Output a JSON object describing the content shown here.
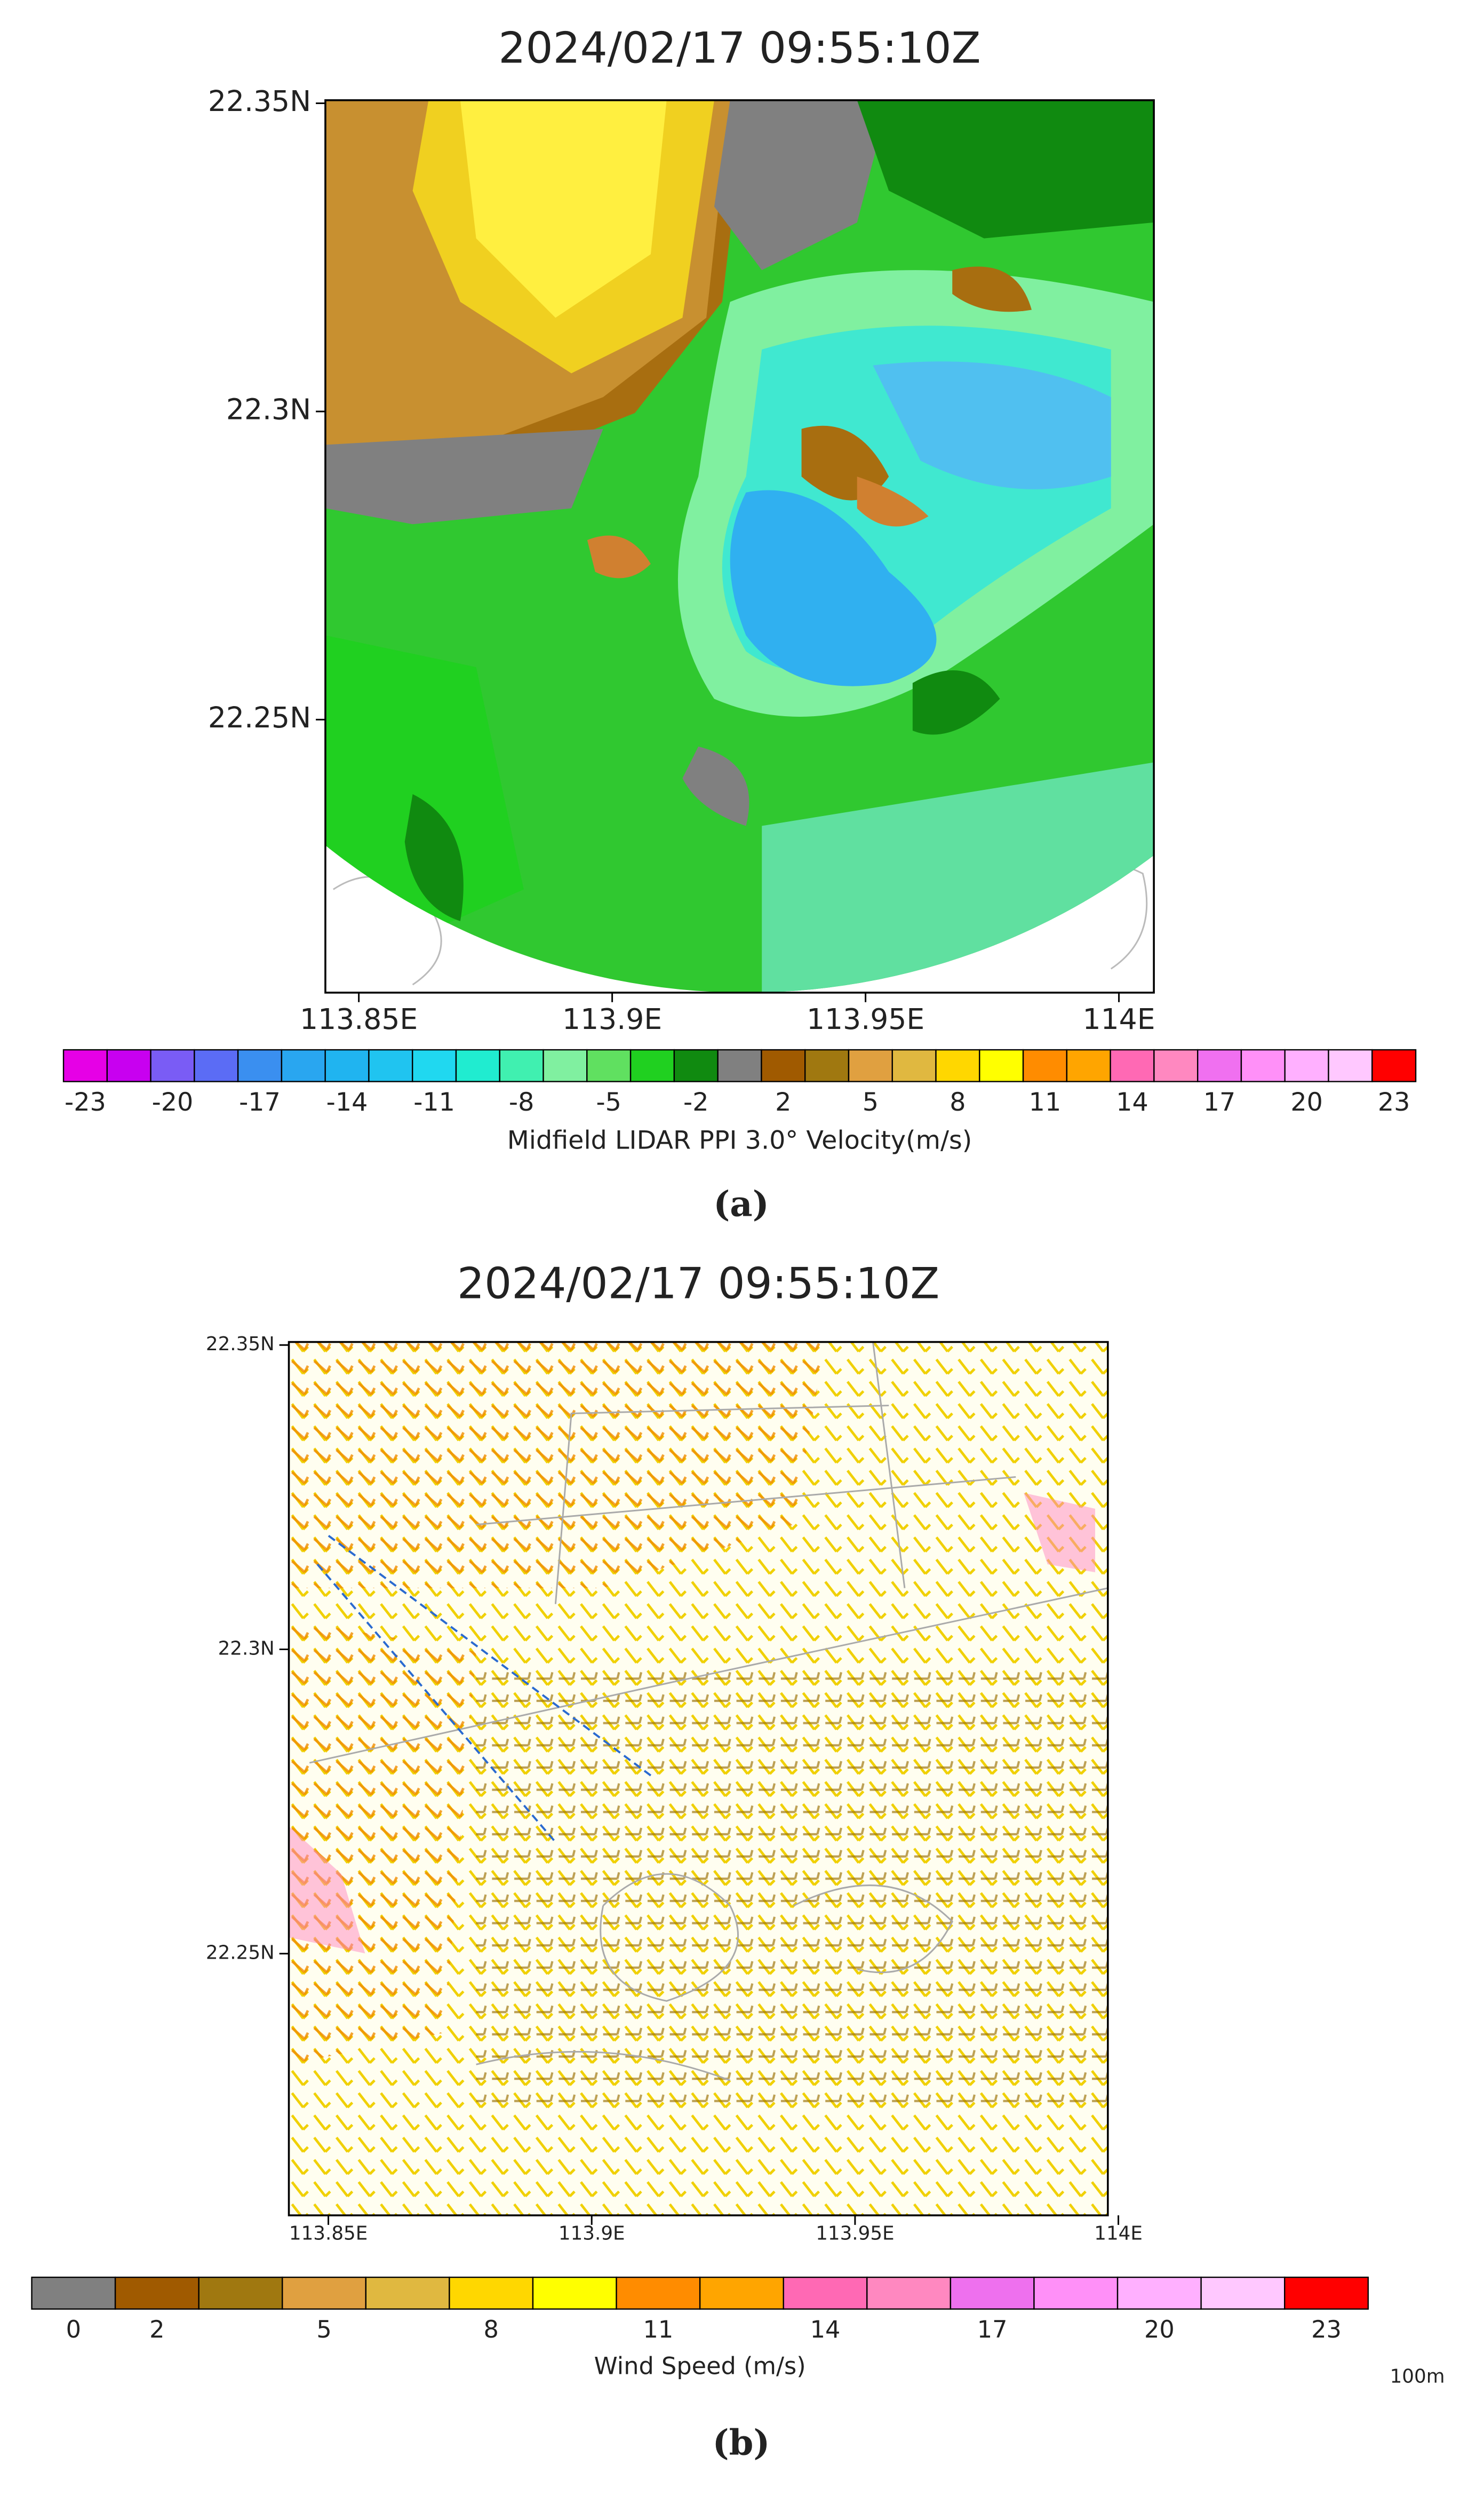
{
  "chart_data": [
    {
      "type": "heatmap",
      "title": "2024/02/17 09:55:10Z",
      "xlim": [
        113.8434,
        114.0069
      ],
      "ylim": [
        22.2057,
        22.3505
      ],
      "xticks": [
        {
          "value": 113.85,
          "label": "113.85E"
        },
        {
          "value": 113.9,
          "label": "113.9E"
        },
        {
          "value": 113.95,
          "label": "113.95E"
        },
        {
          "value": 114,
          "label": "114E"
        }
      ],
      "yticks": [
        {
          "value": 22.35,
          "label": "22.35N"
        },
        {
          "value": 22.3,
          "label": "22.3N"
        },
        {
          "value": 22.25,
          "label": "22.25N"
        }
      ],
      "colorbar": {
        "title": "Midfield LIDAR PPI 3.0° Velocity(m/s)",
        "colors": [
          "#e600e6",
          "#c800f0",
          "#7a5cf5",
          "#5b6cf5",
          "#3a8ff0",
          "#29a6f0",
          "#20b4f0",
          "#20c4f0",
          "#20d8f0",
          "#20ecd0",
          "#40f0b0",
          "#80f0a0",
          "#60e060",
          "#20d020",
          "#108a10",
          "#808080",
          "#a05a00",
          "#a07810",
          "#e0a040",
          "#e0b840",
          "#ffd700",
          "#ffff00",
          "#ff8c00",
          "#ffa500",
          "#ff69b4",
          "#ff88c0",
          "#f070f0",
          "#ff90f8",
          "#ffb0ff",
          "#ffc8ff",
          "#ff0000"
        ],
        "labels": [
          -23,
          null,
          -20,
          null,
          -17,
          null,
          -14,
          null,
          -11,
          null,
          -8,
          null,
          -5,
          null,
          -2,
          null,
          2,
          null,
          5,
          null,
          8,
          null,
          11,
          null,
          14,
          null,
          17,
          null,
          20,
          null,
          23
        ]
      },
      "panel_label": "(a)"
    },
    {
      "type": "barbs",
      "title": "2024/02/17 09:55:10Z",
      "xlim": [
        113.8425,
        113.998
      ],
      "ylim": [
        22.207,
        22.3505
      ],
      "xticks": [
        {
          "value": 113.85,
          "label": "113.85E"
        },
        {
          "value": 113.9,
          "label": "113.9E"
        },
        {
          "value": 113.95,
          "label": "113.95E"
        },
        {
          "value": 114,
          "label": "114E"
        }
      ],
      "yticks": [
        {
          "value": 22.35,
          "label": "22.35N"
        },
        {
          "value": 22.3,
          "label": "22.3N"
        },
        {
          "value": 22.25,
          "label": "22.25N"
        }
      ],
      "colorbar": {
        "title": "Wind Speed (m/s)",
        "colors": [
          "#808080",
          "#a05a00",
          "#a07810",
          "#e0a040",
          "#e0b840",
          "#ffd700",
          "#ffff00",
          "#ff8c00",
          "#ffa500",
          "#ff69b4",
          "#ff88c0",
          "#ee70ee",
          "#ff90f8",
          "#ffb0ff",
          "#ffc8ff",
          "#ff0000"
        ],
        "labels": [
          0,
          2,
          null,
          5,
          null,
          8,
          null,
          11,
          null,
          14,
          null,
          17,
          null,
          20,
          null,
          23
        ]
      },
      "annotation": "100m",
      "panel_label": "(b)"
    }
  ]
}
